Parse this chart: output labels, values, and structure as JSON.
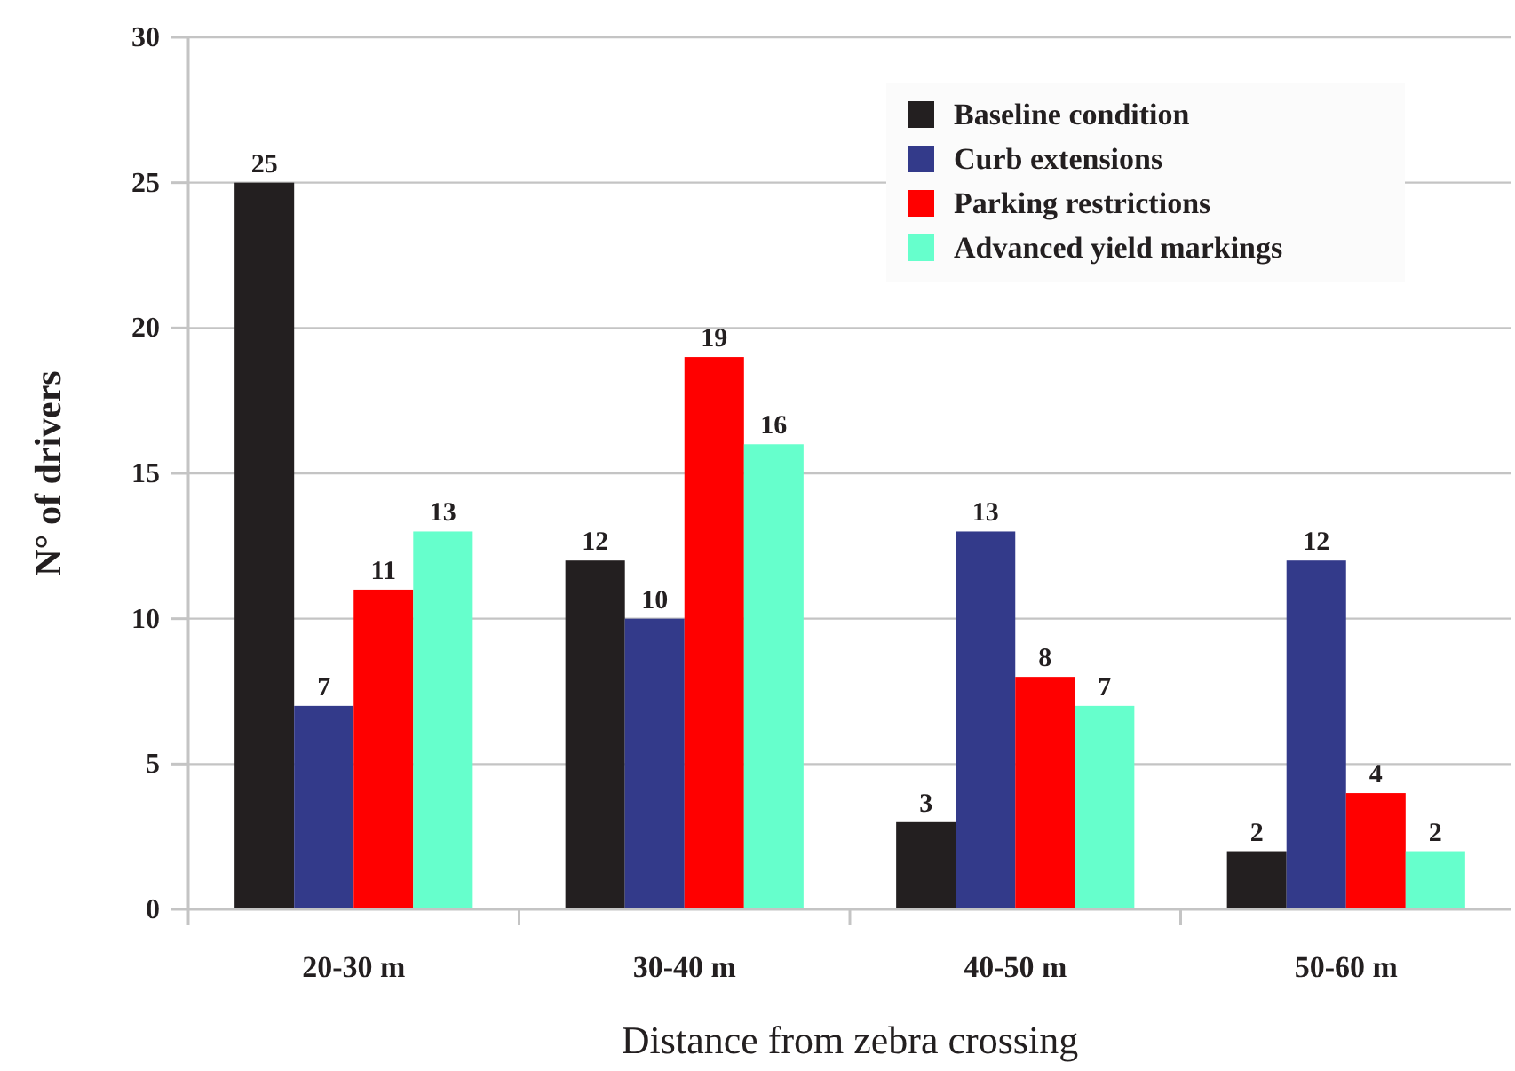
{
  "chart_data": {
    "type": "bar",
    "xlabel": "Distance from zebra crossing",
    "ylabel": "N° of drivers",
    "categories": [
      "20-30 m",
      "30-40 m",
      "40-50 m",
      "50-60 m"
    ],
    "series": [
      {
        "name": "Baseline condition",
        "color": "#231f20",
        "values": [
          25,
          12,
          3,
          2
        ]
      },
      {
        "name": "Curb extensions",
        "color": "#333a8a",
        "values": [
          7,
          10,
          13,
          12
        ]
      },
      {
        "name": "Parking restrictions",
        "color": "#ff0000",
        "values": [
          11,
          19,
          8,
          4
        ]
      },
      {
        "name": "Advanced yield markings",
        "color": "#66ffcc",
        "values": [
          13,
          16,
          7,
          2
        ]
      }
    ],
    "ylim": [
      0,
      30
    ],
    "yticks": [
      0,
      5,
      10,
      15,
      20,
      25,
      30
    ],
    "grid": "y",
    "legend": "top right",
    "data_labels": true
  }
}
